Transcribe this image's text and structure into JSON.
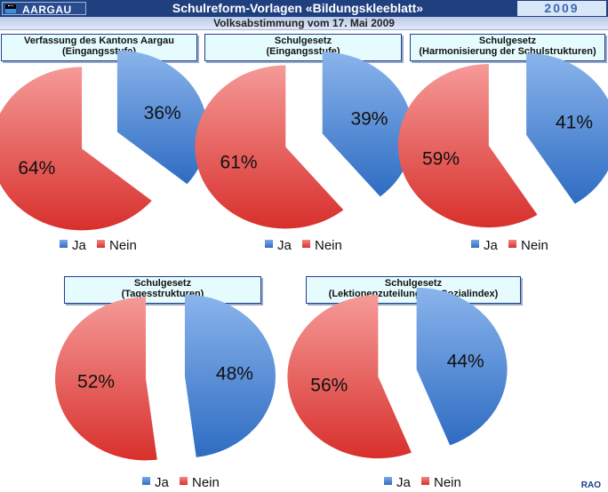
{
  "header": {
    "brand": "AARGAU",
    "title": "Schulreform-Vorlagen «Bildungskleeblatt»",
    "year": "2009",
    "subtitle": "Volksabstimmung  vom 17. Mai 2009"
  },
  "footer": {
    "initials": "RAO"
  },
  "colors": {
    "ja": "#3b79c9",
    "nein": "#d93a36",
    "header_bg": "#1f3f7f"
  },
  "chart_data": [
    {
      "type": "pie",
      "title_line1": "Verfassung des Kantons Aargau",
      "title_line2": "(Eingangsstufe)",
      "categories": [
        "Ja",
        "Nein"
      ],
      "values": [
        36,
        64
      ],
      "labels": [
        "36%",
        "64%"
      ]
    },
    {
      "type": "pie",
      "title_line1": "Schulgesetz",
      "title_line2": "(Eingangsstufe)",
      "categories": [
        "Ja",
        "Nein"
      ],
      "values": [
        39,
        61
      ],
      "labels": [
        "39%",
        "61%"
      ]
    },
    {
      "type": "pie",
      "title_line1": "Schulgesetz",
      "title_line2": "(Harmonisierung der Schulstrukturen)",
      "categories": [
        "Ja",
        "Nein"
      ],
      "values": [
        41,
        59
      ],
      "labels": [
        "41%",
        "59%"
      ]
    },
    {
      "type": "pie",
      "title_line1": "Schulgesetz",
      "title_line2": "(Tagesstrukturen)",
      "categories": [
        "Ja",
        "Nein"
      ],
      "values": [
        48,
        52
      ],
      "labels": [
        "48%",
        "52%"
      ]
    },
    {
      "type": "pie",
      "title_line1": "Schulgesetz",
      "title_line2": "(Lektionenzuteilung mit Sozialindex)",
      "categories": [
        "Ja",
        "Nein"
      ],
      "values": [
        44,
        56
      ],
      "labels": [
        "44%",
        "56%"
      ]
    }
  ]
}
